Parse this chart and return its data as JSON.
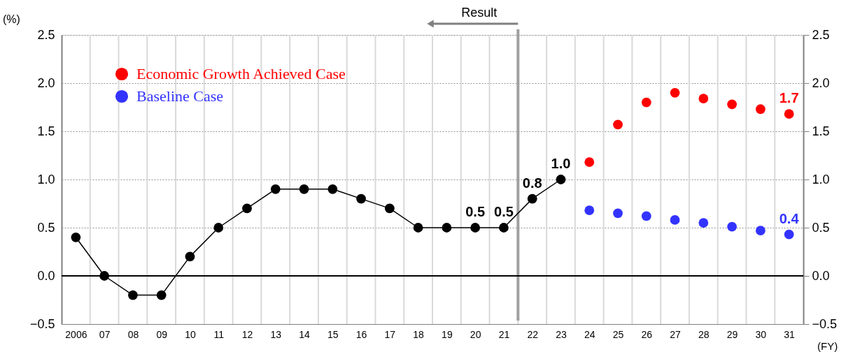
{
  "chart_data": {
    "type": "line",
    "x": [
      2006,
      2007,
      2008,
      2009,
      2010,
      2011,
      2012,
      2013,
      2014,
      2015,
      2016,
      2017,
      2018,
      2019,
      2020,
      2021,
      2022,
      2023,
      2024,
      2025,
      2026,
      2027,
      2028,
      2029,
      2030,
      2031
    ],
    "xlim": [
      2005.5,
      2031.5
    ],
    "xticks": [
      {
        "value": 2006,
        "label": "2006"
      },
      {
        "value": 2007,
        "label": "07"
      },
      {
        "value": 2008,
        "label": "08"
      },
      {
        "value": 2009,
        "label": "09"
      },
      {
        "value": 2010,
        "label": "10"
      },
      {
        "value": 2011,
        "label": "11"
      },
      {
        "value": 2012,
        "label": "12"
      },
      {
        "value": 2013,
        "label": "13"
      },
      {
        "value": 2014,
        "label": "14"
      },
      {
        "value": 2015,
        "label": "15"
      },
      {
        "value": 2016,
        "label": "16"
      },
      {
        "value": 2017,
        "label": "17"
      },
      {
        "value": 2018,
        "label": "18"
      },
      {
        "value": 2019,
        "label": "19"
      },
      {
        "value": 2020,
        "label": "20"
      },
      {
        "value": 2021,
        "label": "21"
      },
      {
        "value": 2022,
        "label": "22"
      },
      {
        "value": 2023,
        "label": "23"
      },
      {
        "value": 2024,
        "label": "24"
      },
      {
        "value": 2025,
        "label": "25"
      },
      {
        "value": 2026,
        "label": "26"
      },
      {
        "value": 2027,
        "label": "27"
      },
      {
        "value": 2028,
        "label": "28"
      },
      {
        "value": 2029,
        "label": "29"
      },
      {
        "value": 2030,
        "label": "30"
      },
      {
        "value": 2031,
        "label": "31"
      }
    ],
    "ylim": [
      -0.5,
      2.5
    ],
    "yticks": [
      {
        "value": -0.5,
        "label": "−0.5"
      },
      {
        "value": 0,
        "label": "0.0"
      },
      {
        "value": 0.5,
        "label": "0.5"
      },
      {
        "value": 1,
        "label": "1.0"
      },
      {
        "value": 1.5,
        "label": "1.5"
      },
      {
        "value": 2,
        "label": "2.0"
      },
      {
        "value": 2.5,
        "label": "2.5"
      }
    ],
    "y2lim": [
      -0.5,
      2.5
    ],
    "y2ticks": [
      {
        "value": -0.5,
        "label": "−0.5"
      },
      {
        "value": 0,
        "label": "0.0"
      },
      {
        "value": 0.5,
        "label": "0.5"
      },
      {
        "value": 1,
        "label": "1.0"
      },
      {
        "value": 1.5,
        "label": "1.5"
      },
      {
        "value": 2,
        "label": "2.0"
      },
      {
        "value": 2.5,
        "label": "2.5"
      }
    ],
    "ylabel": "(%)",
    "xlabel": "(FY)",
    "grid": true,
    "legend": "top left",
    "marker": "circle",
    "line_style": "solid",
    "series": [
      {
        "color": "#000000",
        "values": [
          0.4,
          0.0,
          -0.2,
          -0.2,
          0.2,
          0.5,
          0.7,
          0.9,
          0.9,
          0.9,
          0.8,
          0.7,
          0.5,
          0.5,
          0.5,
          0.5,
          0.8,
          1.0,
          null,
          null,
          null,
          null,
          null,
          null,
          null,
          null
        ],
        "value_labels": [
          null,
          null,
          null,
          null,
          null,
          null,
          null,
          null,
          null,
          null,
          null,
          null,
          null,
          null,
          "0.5",
          "0.5",
          "0.8",
          "1.0",
          null,
          null,
          null,
          null,
          null,
          null,
          null,
          null
        ]
      },
      {
        "type": "scatter",
        "name": "Economic Growth Achieved Case",
        "color": "#ff0000",
        "values": [
          null,
          null,
          null,
          null,
          null,
          null,
          null,
          null,
          null,
          null,
          null,
          null,
          null,
          null,
          null,
          null,
          null,
          null,
          1.18,
          1.57,
          1.8,
          1.9,
          1.84,
          1.78,
          1.73,
          1.68
        ],
        "value_labels": [
          null,
          null,
          null,
          null,
          null,
          null,
          null,
          null,
          null,
          null,
          null,
          null,
          null,
          null,
          null,
          null,
          null,
          null,
          null,
          null,
          null,
          null,
          null,
          null,
          null,
          "1.7"
        ]
      },
      {
        "type": "scatter",
        "name": "Baseline Case",
        "color": "#3333ff",
        "values": [
          null,
          null,
          null,
          null,
          null,
          null,
          null,
          null,
          null,
          null,
          null,
          null,
          null,
          null,
          null,
          null,
          null,
          null,
          0.68,
          0.65,
          0.62,
          0.58,
          0.55,
          0.51,
          0.47,
          0.43
        ],
        "value_labels": [
          null,
          null,
          null,
          null,
          null,
          null,
          null,
          null,
          null,
          null,
          null,
          null,
          null,
          null,
          null,
          null,
          null,
          null,
          null,
          null,
          null,
          null,
          null,
          null,
          null,
          "0.4"
        ]
      }
    ],
    "ref_lines": [
      {
        "axis": "x",
        "value": 2021.5,
        "label": null,
        "color": "#a0a0a0"
      },
      {
        "axis": "y",
        "value": 0.0,
        "label": null,
        "color": "#000000"
      }
    ],
    "annotations": [
      {
        "text": "Result",
        "x": 2021.5,
        "y": 2.5
      }
    ]
  }
}
